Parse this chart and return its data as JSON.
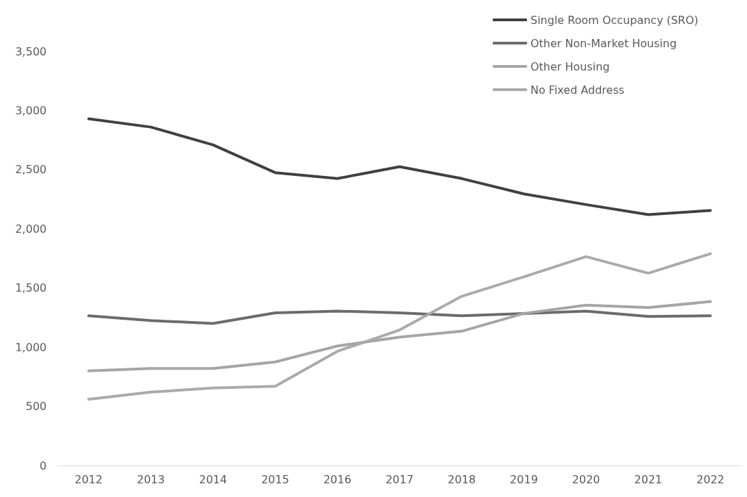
{
  "chart_data": {
    "type": "line",
    "categories": [
      "2012",
      "2013",
      "2014",
      "2015",
      "2016",
      "2017",
      "2018",
      "2019",
      "2020",
      "2021",
      "2022"
    ],
    "series": [
      {
        "name": "Single Room Occupancy (SRO)",
        "color": "#404040",
        "values": [
          2930,
          2860,
          2710,
          2475,
          2425,
          2525,
          2425,
          2295,
          2205,
          2120,
          2155
        ]
      },
      {
        "name": "Other Non-Market Housing",
        "color": "#6b6b6b",
        "values": [
          1265,
          1225,
          1200,
          1290,
          1305,
          1290,
          1265,
          1285,
          1305,
          1260,
          1265
        ]
      },
      {
        "name": "Other Housing",
        "color": "#a5a5a5",
        "values": [
          800,
          820,
          820,
          875,
          1010,
          1085,
          1135,
          1285,
          1355,
          1335,
          1385
        ]
      },
      {
        "name": "No Fixed Address",
        "color": "#aaaaaa",
        "values": [
          560,
          620,
          655,
          670,
          965,
          1145,
          1430,
          1595,
          1765,
          1625,
          1790
        ]
      }
    ],
    "ylim": [
      0,
      3500
    ],
    "yticks": [
      0,
      500,
      {
        "value": 1000,
        "label": "1,000"
      },
      {
        "value": 1500,
        "label": "1,500"
      },
      {
        "value": 2000,
        "label": "2,000"
      },
      {
        "value": 2500,
        "label": "2,500"
      },
      {
        "value": 3000,
        "label": "3,000"
      },
      {
        "value": 3500,
        "label": "3,500"
      }
    ],
    "grid": false,
    "legend": "top right",
    "marker": "none",
    "line_style": "solid"
  }
}
